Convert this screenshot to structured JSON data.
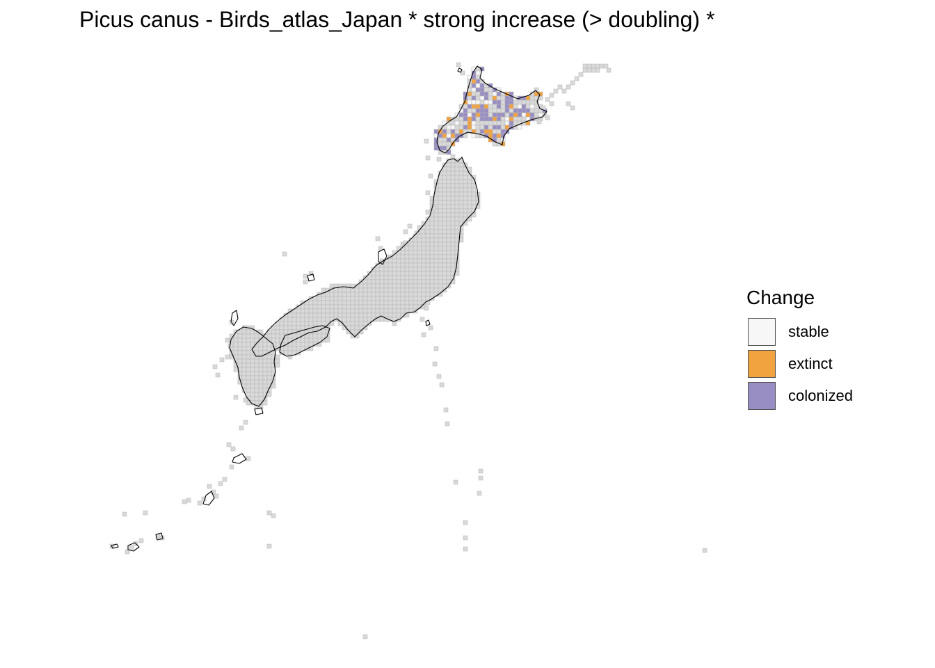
{
  "title": "Picus canus - Birds_atlas_Japan * strong increase (> doubling) *",
  "legend": {
    "title": "Change",
    "items": [
      {
        "label": "stable",
        "color": "#f7f7f7"
      },
      {
        "label": "extinct",
        "color": "#f1a340"
      },
      {
        "label": "colonized",
        "color": "#998ec3"
      }
    ]
  },
  "colors": {
    "unchanged_cell": "#d9d9d9",
    "cell_border": "#b3b3b3",
    "coastline": "#000000"
  }
}
